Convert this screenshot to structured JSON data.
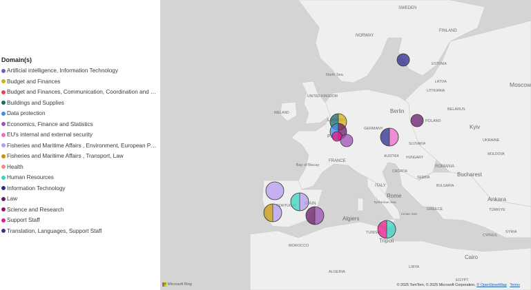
{
  "legend": {
    "title": "Domain(s)",
    "items": [
      {
        "label": "Artificial intelligence, Information Technology",
        "color": "#6b63c9"
      },
      {
        "label": "Budget and Finances",
        "color": "#d4b020"
      },
      {
        "label": "Budget and Finances, Communication, Coordination and c...",
        "color": "#e8455a"
      },
      {
        "label": "Buildings and Supplies",
        "color": "#1d6b6b"
      },
      {
        "label": "Data protection",
        "color": "#3d8fe8"
      },
      {
        "label": "Economics, Finance and Statistics",
        "color": "#a052b8"
      },
      {
        "label": "EU's internal and external security",
        "color": "#ec6ec9"
      },
      {
        "label": "Fisheries and Maritime Affairs , Environment, European Poli...",
        "color": "#b89cf0"
      },
      {
        "label": "Fisheries and Maritime Affairs , Transport, Law",
        "color": "#c49a0a"
      },
      {
        "label": "Health",
        "color": "#f08a8a"
      },
      {
        "label": "Human Resources",
        "color": "#3bd4c4"
      },
      {
        "label": "Information Technology",
        "color": "#2c2c8c"
      },
      {
        "label": "Law",
        "color": "#6a1a6a"
      },
      {
        "label": "Science and Research",
        "color": "#8c1a6a"
      },
      {
        "label": "Support Staff",
        "color": "#e81c8c"
      },
      {
        "label": "Translation, Languages, Support Staff",
        "color": "#4a2c8c"
      }
    ]
  },
  "map": {
    "labels": {
      "sweden": "SWEDEN",
      "finland": "FINLAND",
      "norway": "NORWAY",
      "estonia": "ESTONIA",
      "latvia": "LATVIA",
      "lithuania": "LITHUANIA",
      "moscow": "Moscow",
      "north_sea": "North Sea",
      "united_kingdom": "UNITED KINGDOM",
      "ireland": "IRELAND",
      "berlin": "Berlin",
      "poland": "POLAND",
      "belarus": "BELARUS",
      "london": "London",
      "germany": "GERMANY",
      "kyiv": "Kyiv",
      "ukraine": "UKRAINE",
      "paris": "Paris",
      "slovakia": "SLOVAKIA",
      "moldova": "MOLDOVA",
      "france": "FRANCE",
      "austria": "AUSTRIA",
      "hungary": "HUNGARY",
      "bay_of_biscay": "Bay of Biscay",
      "romania": "ROMANIA",
      "bucharest": "Bucharest",
      "croatia": "CROATIA",
      "serbia": "SERBIA",
      "italy": "ITALY",
      "bulgaria": "BULGARIA",
      "portugal": "PORTUGAL",
      "spain": "SPAIN",
      "rome": "Rome",
      "tyrrhenian_sea": "Tyrrhenian Sea",
      "ionian_sea": "Ionian Sea",
      "ankara": "Ankara",
      "turkiye": "TÜRKIYE",
      "greece": "GREECE",
      "algiers": "Algiers",
      "tunisia": "TUNISIA",
      "morocco": "MOROCCO",
      "tripoli": "Tripoli",
      "cyprus": "CYPRUS",
      "syria": "SYRIA",
      "algeria": "ALGERIA",
      "libya": "LIBYA",
      "cairo": "Cairo",
      "egypt": "EGYPT"
    },
    "bubbles": [
      {
        "place": "Stockholm",
        "colors": [
          "#2c2c8c"
        ]
      },
      {
        "place": "Vilnius",
        "colors": [
          "#6a1a6a"
        ]
      },
      {
        "place": "Warsaw",
        "colors": [
          "#2c2c8c",
          "#ec6ec9"
        ]
      },
      {
        "place": "Amsterdam",
        "colors": [
          "#1d6b6b",
          "#d4b020"
        ]
      },
      {
        "place": "Brussels",
        "colors": [
          "#3d8fe8",
          "#6a1a6a"
        ]
      },
      {
        "place": "Luxembourg",
        "colors": [
          "#e81c8c"
        ]
      },
      {
        "place": "Frankfurt",
        "colors": [
          "#a052b8"
        ]
      },
      {
        "place": "Vigo",
        "colors": [
          "#b89cf0"
        ]
      },
      {
        "place": "Madrid",
        "colors": [
          "#3bd4c4",
          "#b89cf0"
        ]
      },
      {
        "place": "Lisbon",
        "colors": [
          "#c49a0a",
          "#b89cf0"
        ]
      },
      {
        "place": "Valencia",
        "colors": [
          "#6a1a6a",
          "#a052b8"
        ]
      },
      {
        "place": "Malta",
        "colors": [
          "#e81c8c",
          "#3bd4c4"
        ]
      }
    ]
  },
  "branding": {
    "name": "Microsoft Bing"
  },
  "attribution": {
    "text": "© 2025 TomTom, © 2025 Microsoft Corporation, ",
    "osm": "© OpenStreetMap",
    "terms": "Terms"
  }
}
